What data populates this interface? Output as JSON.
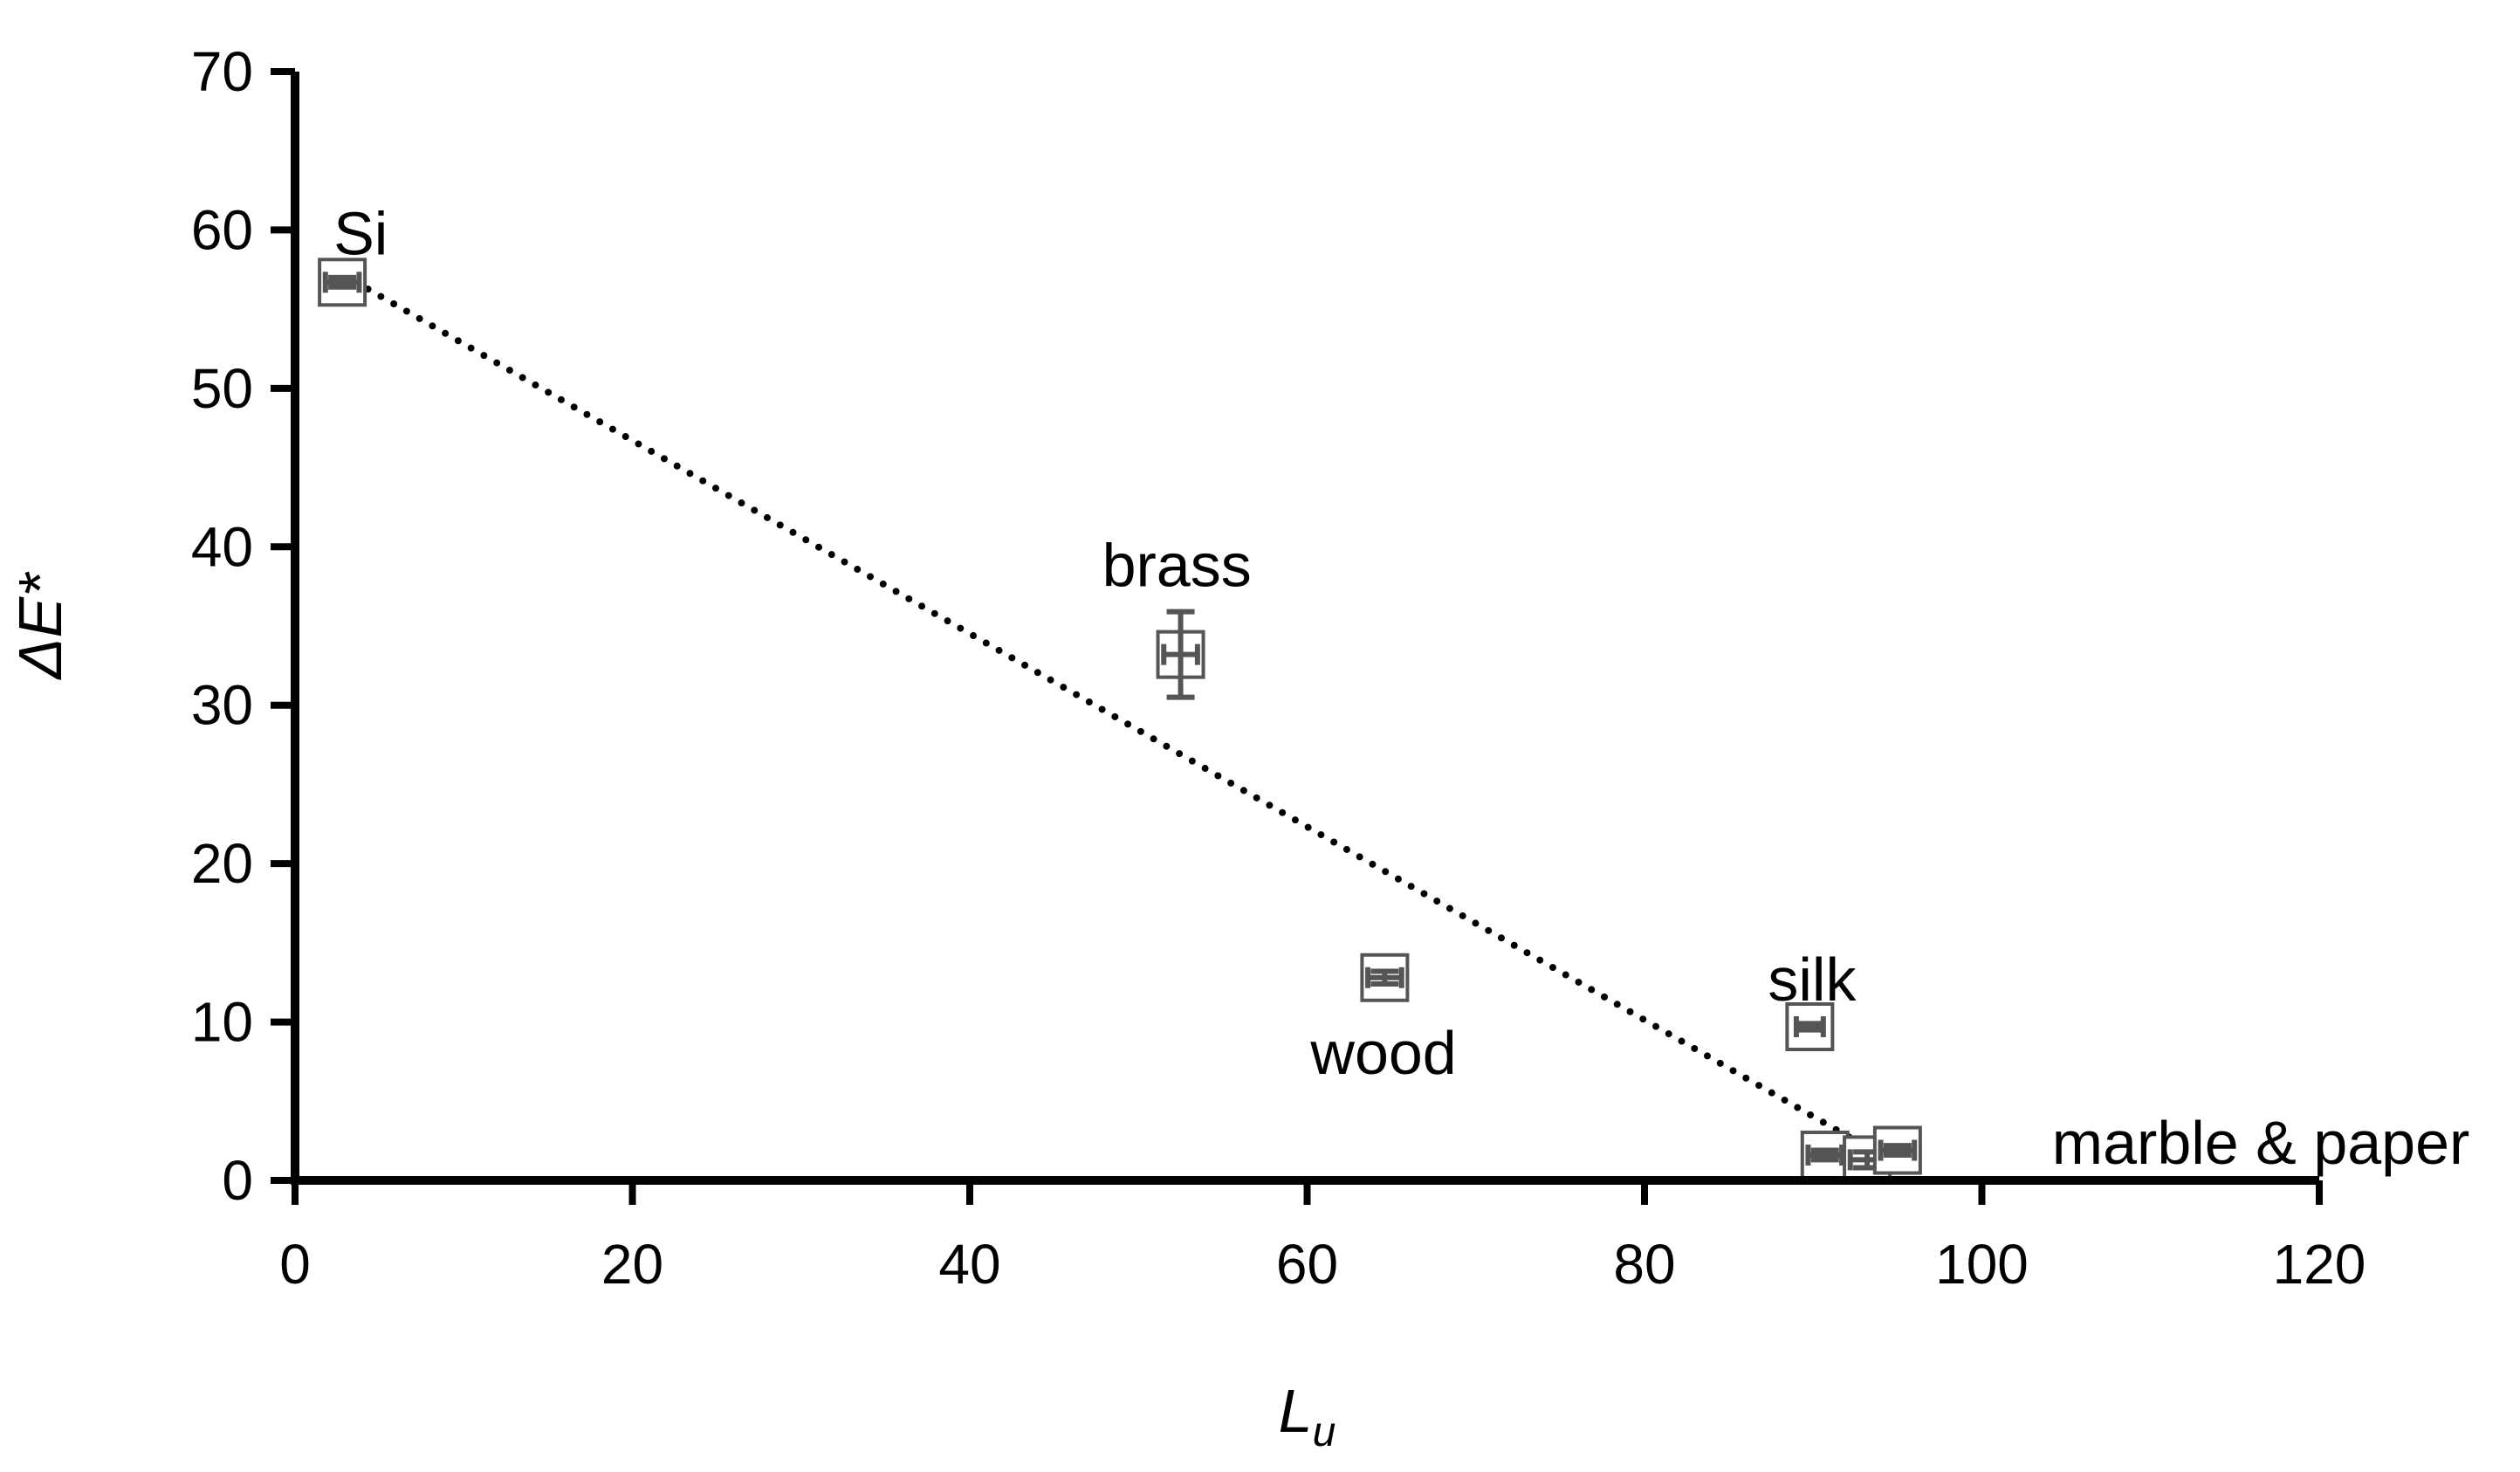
{
  "chart_data": {
    "type": "scatter",
    "xlabel": "L",
    "xlabel_sub": "u",
    "ylabel": "ΔE*",
    "xlim": [
      0,
      120
    ],
    "ylim": [
      0,
      70
    ],
    "xticks": [
      "0",
      "20",
      "40",
      "60",
      "80",
      "100",
      "120"
    ],
    "yticks": [
      "0",
      "10",
      "20",
      "30",
      "40",
      "50",
      "60",
      "70"
    ],
    "grid": false,
    "points": [
      {
        "label": "Si",
        "x": 2.8,
        "y": 56.7,
        "xerr": 1.0,
        "yerr": 0.3
      },
      {
        "label": "brass",
        "x": 52.5,
        "y": 33.2,
        "xerr": 1.0,
        "yerr": 2.7
      },
      {
        "label": "wood",
        "x": 64.6,
        "y": 12.8,
        "xerr": 1.0,
        "yerr": 0.4
      },
      {
        "label": "silk",
        "x": 89.8,
        "y": 9.7,
        "xerr": 0.8,
        "yerr": 0.2
      },
      {
        "label": "marble & paper",
        "x": 90.7,
        "y": 1.6,
        "xerr": 1.0,
        "yerr": 0.3
      },
      {
        "label": "",
        "x": 93.2,
        "y": 1.3,
        "xerr": 1.0,
        "yerr": 0.5
      },
      {
        "label": "",
        "x": 95.0,
        "y": 1.9,
        "xerr": 1.0,
        "yerr": 0.3
      }
    ],
    "trendline": {
      "style": "dotted",
      "x": [
        2.8,
        93.5
      ],
      "y": [
        57.2,
        1.9
      ]
    },
    "colors": {
      "axis": "#000000",
      "marker": "#555555",
      "trend": "#000000"
    }
  }
}
